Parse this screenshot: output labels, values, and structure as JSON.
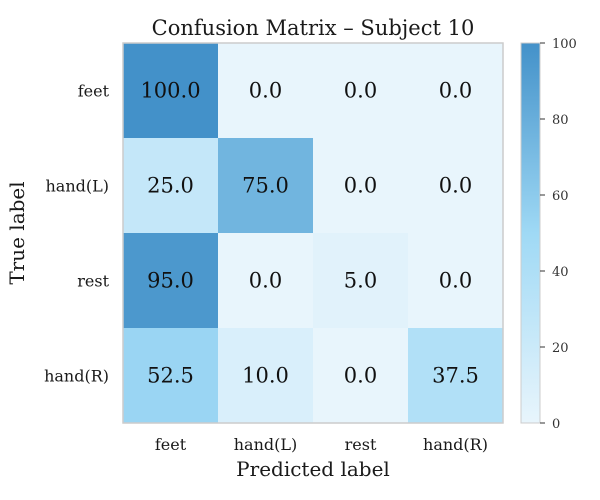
{
  "chart_data": {
    "type": "heatmap",
    "title": "Confusion Matrix – Subject 10",
    "xlabel": "Predicted label",
    "ylabel": "True label",
    "x_categories": [
      "feet",
      "hand(L)",
      "rest",
      "hand(R)"
    ],
    "y_categories": [
      "feet",
      "hand(L)",
      "rest",
      "hand(R)"
    ],
    "values": [
      [
        100.0,
        0.0,
        0.0,
        0.0
      ],
      [
        25.0,
        75.0,
        0.0,
        0.0
      ],
      [
        95.0,
        0.0,
        5.0,
        0.0
      ],
      [
        52.5,
        10.0,
        0.0,
        37.5
      ]
    ],
    "value_labels": [
      [
        "100.0",
        "0.0",
        "0.0",
        "0.0"
      ],
      [
        "25.0",
        "75.0",
        "0.0",
        "0.0"
      ],
      [
        "95.0",
        "0.0",
        "5.0",
        "0.0"
      ],
      [
        "52.5",
        "10.0",
        "0.0",
        "37.5"
      ]
    ],
    "colorbar": {
      "range": [
        0,
        100
      ],
      "ticks": [
        0,
        20,
        40,
        60,
        80,
        100
      ],
      "color_low": "#e8f5fc",
      "color_mid": "#9fd9f5",
      "color_high": "#4391c9"
    },
    "grid": false
  }
}
